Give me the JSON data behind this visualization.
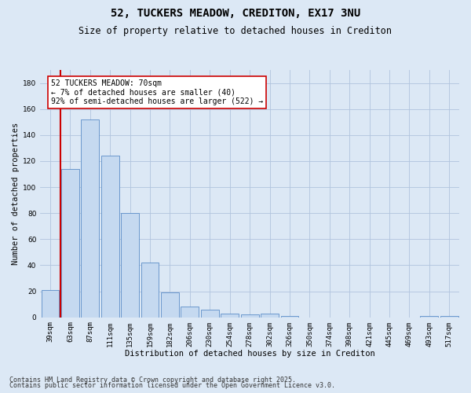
{
  "title": "52, TUCKERS MEADOW, CREDITON, EX17 3NU",
  "subtitle": "Size of property relative to detached houses in Crediton",
  "xlabel": "Distribution of detached houses by size in Crediton",
  "ylabel": "Number of detached properties",
  "categories": [
    "39sqm",
    "63sqm",
    "87sqm",
    "111sqm",
    "135sqm",
    "159sqm",
    "182sqm",
    "206sqm",
    "230sqm",
    "254sqm",
    "278sqm",
    "302sqm",
    "326sqm",
    "350sqm",
    "374sqm",
    "398sqm",
    "421sqm",
    "445sqm",
    "469sqm",
    "493sqm",
    "517sqm"
  ],
  "values": [
    21,
    114,
    152,
    124,
    80,
    42,
    19,
    8,
    6,
    3,
    2,
    3,
    1,
    0,
    0,
    0,
    0,
    0,
    0,
    1,
    1
  ],
  "bar_color": "#c5d9f0",
  "bar_edge_color": "#5b8dc8",
  "vline_color": "#cc0000",
  "vline_x": 0.5,
  "annotation_text": "52 TUCKERS MEADOW: 70sqm\n← 7% of detached houses are smaller (40)\n92% of semi-detached houses are larger (522) →",
  "annotation_box_facecolor": "#ffffff",
  "annotation_box_edgecolor": "#cc0000",
  "ylim": [
    0,
    190
  ],
  "yticks": [
    0,
    20,
    40,
    60,
    80,
    100,
    120,
    140,
    160,
    180
  ],
  "background_color": "#dce8f5",
  "grid_color": "#b0c4de",
  "footer_line1": "Contains HM Land Registry data © Crown copyright and database right 2025.",
  "footer_line2": "Contains public sector information licensed under the Open Government Licence v3.0.",
  "title_fontsize": 10,
  "subtitle_fontsize": 8.5,
  "axis_label_fontsize": 7.5,
  "tick_fontsize": 6.5,
  "annotation_fontsize": 7,
  "footer_fontsize": 6
}
